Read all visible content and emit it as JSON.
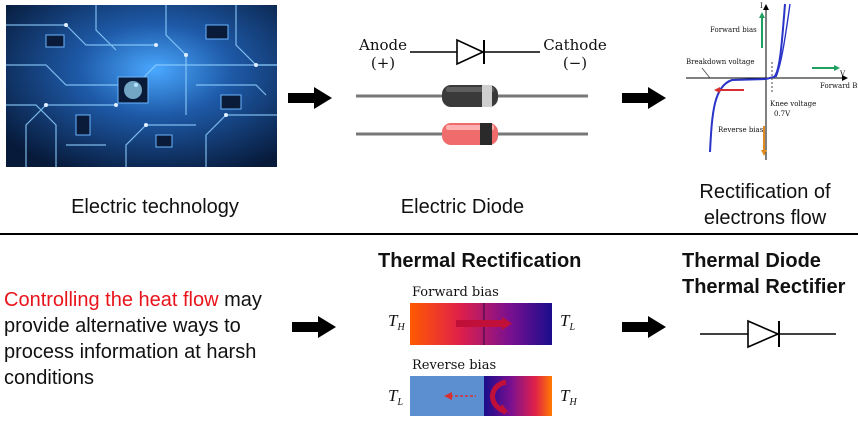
{
  "top_row": {
    "caption_tech": "Electric technology",
    "caption_diode": "Electric Diode",
    "caption_rect_line1": "Rectification of",
    "caption_rect_line2": "electrons flow",
    "anode_label": "Anode",
    "anode_sign": "(+)",
    "cathode_label": "Cathode",
    "cathode_sign": "(−)",
    "iv_curve": {
      "axis_i": "I",
      "axis_v": "V",
      "forward_bias": "Forward bias",
      "forward_bias_right": "Forward Bias",
      "breakdown_voltage": "Breakdown voltage",
      "knee_voltage": "Knee voltage",
      "knee_value": "0.7V",
      "reverse_bias": "Reverse bias"
    }
  },
  "bottom_row": {
    "text_highlight": "Controlling the heat flow",
    "text_rest_1": " may",
    "text_line2": "provide alternative ways to",
    "text_line3": "process information at harsh",
    "text_line4": "conditions",
    "thermal_rect_title": "Thermal Rectification",
    "forward_bias": "Forward bias",
    "reverse_bias": "Reverse bias",
    "t_h": "T",
    "t_h_sub": "H",
    "t_l": "T",
    "t_l_sub": "L",
    "thermal_diode_line1": "Thermal Diode",
    "thermal_diode_line2": "Thermal Rectifier"
  },
  "colors": {
    "highlight": "#e8141c",
    "board_blue": "#1e5aa8",
    "hot": "#ff3a00",
    "cold": "#1a0d8c",
    "reverse_block": "#5b8fcf"
  }
}
